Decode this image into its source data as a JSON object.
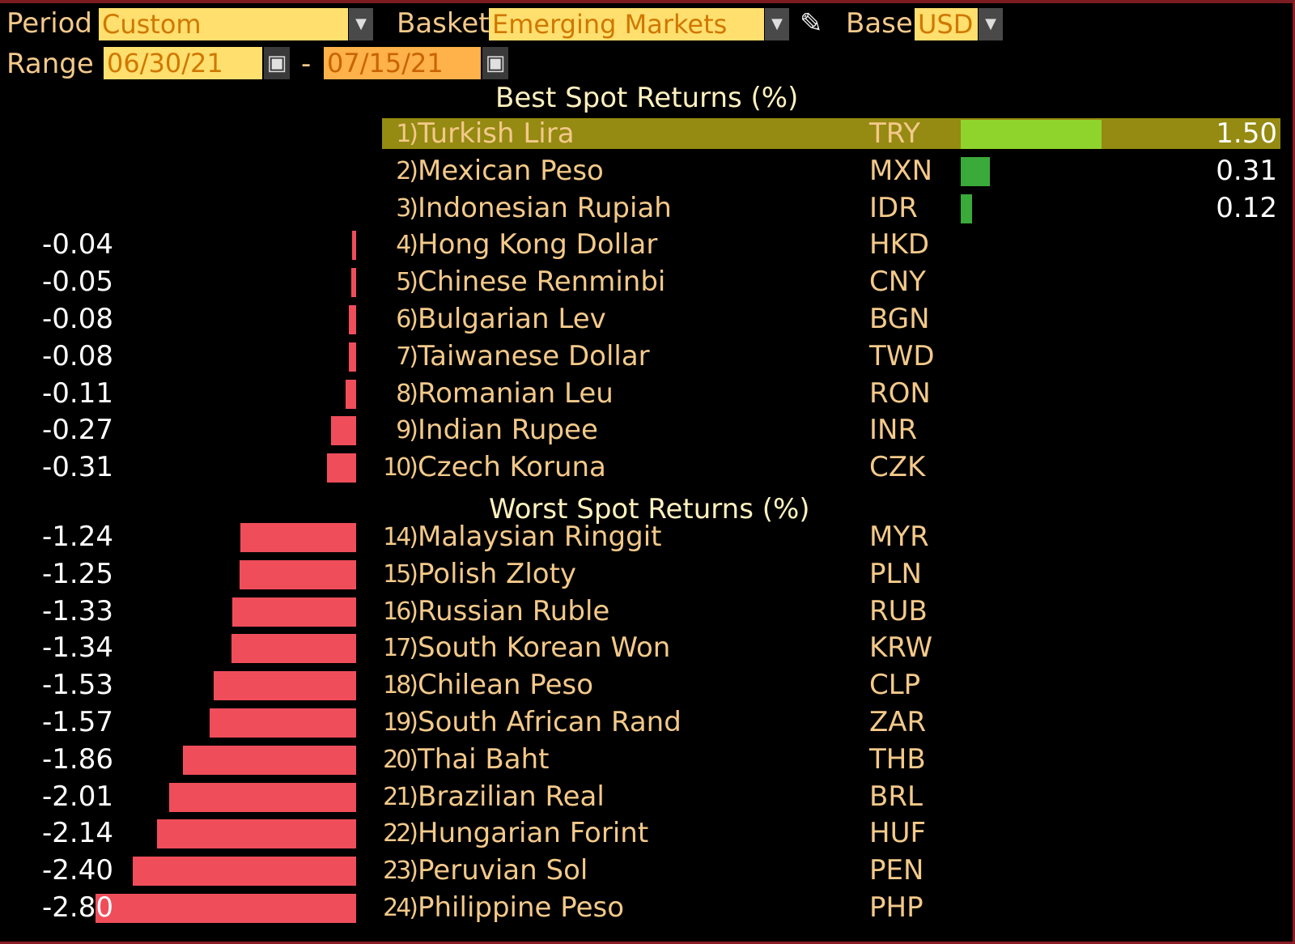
{
  "header": {
    "period_label": "Period",
    "period_value": "Custom",
    "basket_label": "Basket",
    "basket_value": "Emerging Markets",
    "base_label": "Base",
    "base_value": "USD",
    "range_label": "Range",
    "range_start": "06/30/21",
    "range_sep": "-",
    "range_end": "07/15/21"
  },
  "best_title": "Best Spot Returns (%)",
  "worst_title": "Worst Spot Returns (%)",
  "colors": {
    "highlight": "#958a12",
    "negative_bar": "#f04d5a",
    "positive_bar_top": "#8fd42c",
    "positive_bar": "#3aaa3a",
    "label_text": "#f3c98a"
  },
  "best_rows": [
    {
      "rank": "1)",
      "name": "Turkish Lira",
      "code": "TRY",
      "value": "1.50",
      "v": 1.5,
      "highlight": true
    },
    {
      "rank": "2)",
      "name": "Mexican Peso",
      "code": "MXN",
      "value": "0.31",
      "v": 0.31
    },
    {
      "rank": "3)",
      "name": "Indonesian Rupiah",
      "code": "IDR",
      "value": "0.12",
      "v": 0.12
    },
    {
      "rank": "4)",
      "name": "Hong Kong Dollar",
      "code": "HKD",
      "value": "-0.04",
      "v": -0.04
    },
    {
      "rank": "5)",
      "name": "Chinese Renminbi",
      "code": "CNY",
      "value": "-0.05",
      "v": -0.05
    },
    {
      "rank": "6)",
      "name": "Bulgarian Lev",
      "code": "BGN",
      "value": "-0.08",
      "v": -0.08
    },
    {
      "rank": "7)",
      "name": "Taiwanese Dollar",
      "code": "TWD",
      "value": "-0.08",
      "v": -0.08
    },
    {
      "rank": "8)",
      "name": "Romanian Leu",
      "code": "RON",
      "value": "-0.11",
      "v": -0.11
    },
    {
      "rank": "9)",
      "name": "Indian Rupee",
      "code": "INR",
      "value": "-0.27",
      "v": -0.27
    },
    {
      "rank": "10)",
      "name": "Czech Koruna",
      "code": "CZK",
      "value": "-0.31",
      "v": -0.31
    }
  ],
  "worst_rows": [
    {
      "rank": "14)",
      "name": "Malaysian Ringgit",
      "code": "MYR",
      "value": "-1.24",
      "v": -1.24
    },
    {
      "rank": "15)",
      "name": "Polish Zloty",
      "code": "PLN",
      "value": "-1.25",
      "v": -1.25
    },
    {
      "rank": "16)",
      "name": "Russian Ruble",
      "code": "RUB",
      "value": "-1.33",
      "v": -1.33
    },
    {
      "rank": "17)",
      "name": "South Korean Won",
      "code": "KRW",
      "value": "-1.34",
      "v": -1.34
    },
    {
      "rank": "18)",
      "name": "Chilean Peso",
      "code": "CLP",
      "value": "-1.53",
      "v": -1.53
    },
    {
      "rank": "19)",
      "name": "South African Rand",
      "code": "ZAR",
      "value": "-1.57",
      "v": -1.57
    },
    {
      "rank": "20)",
      "name": "Thai Baht",
      "code": "THB",
      "value": "-1.86",
      "v": -1.86
    },
    {
      "rank": "21)",
      "name": "Brazilian Real",
      "code": "BRL",
      "value": "-2.01",
      "v": -2.01
    },
    {
      "rank": "22)",
      "name": "Hungarian Forint",
      "code": "HUF",
      "value": "-2.14",
      "v": -2.14
    },
    {
      "rank": "23)",
      "name": "Peruvian Sol",
      "code": "PEN",
      "value": "-2.40",
      "v": -2.4
    },
    {
      "rank": "24)",
      "name": "Philippine Peso",
      "code": "PHP",
      "value": "-2.80",
      "v": -2.8
    }
  ]
}
